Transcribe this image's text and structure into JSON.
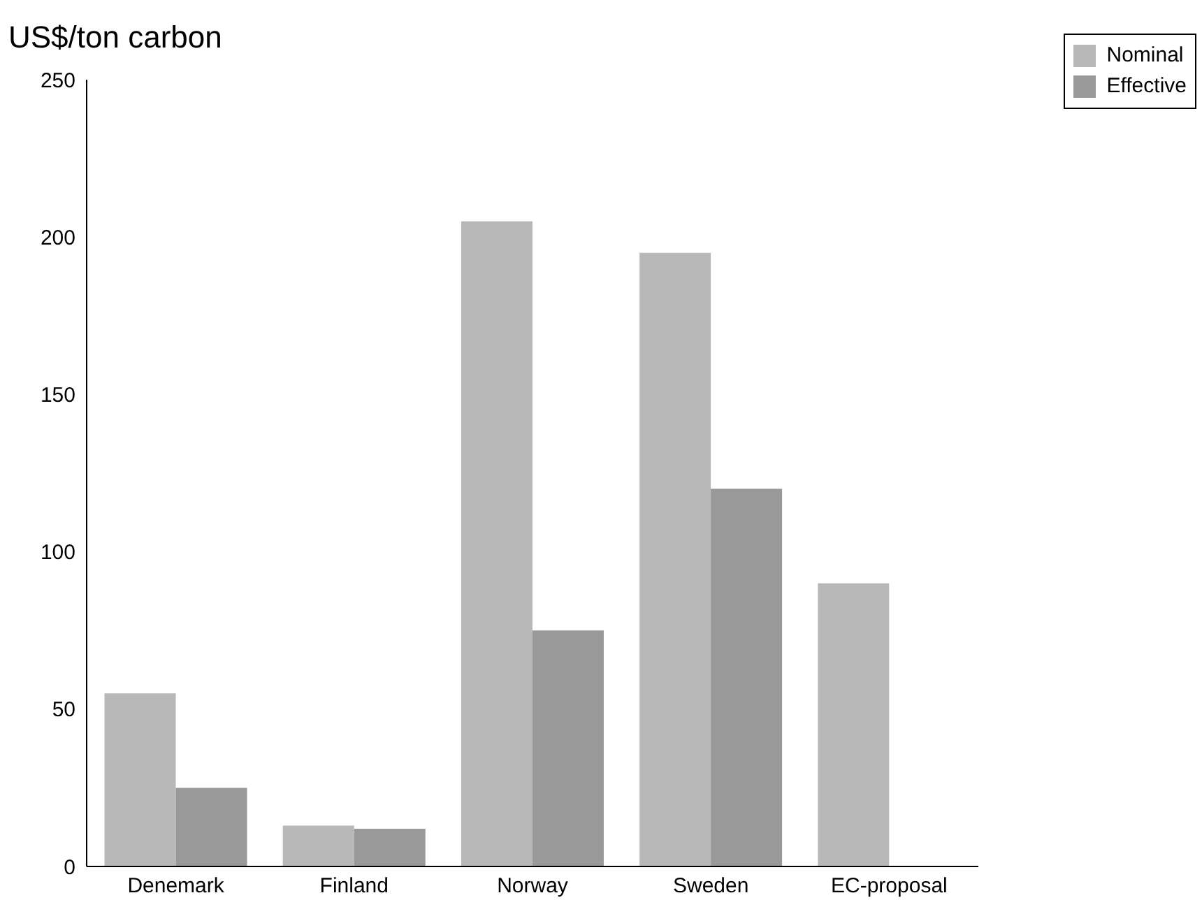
{
  "chart_data": {
    "type": "bar",
    "ylabel": "US$/ton carbon",
    "categories": [
      "Denemark",
      "Finland",
      "Norway",
      "Sweden",
      "EC-proposal"
    ],
    "series": [
      {
        "name": "Nominal",
        "color": "#b8b8b8",
        "values": [
          55,
          13,
          205,
          195,
          90
        ]
      },
      {
        "name": "Effective",
        "color": "#999999",
        "values": [
          25,
          12,
          75,
          120,
          null
        ]
      }
    ],
    "ylim": [
      0,
      250
    ],
    "yticks": [
      0,
      50,
      100,
      150,
      200,
      250
    ],
    "grid": false,
    "legend": "top right"
  }
}
